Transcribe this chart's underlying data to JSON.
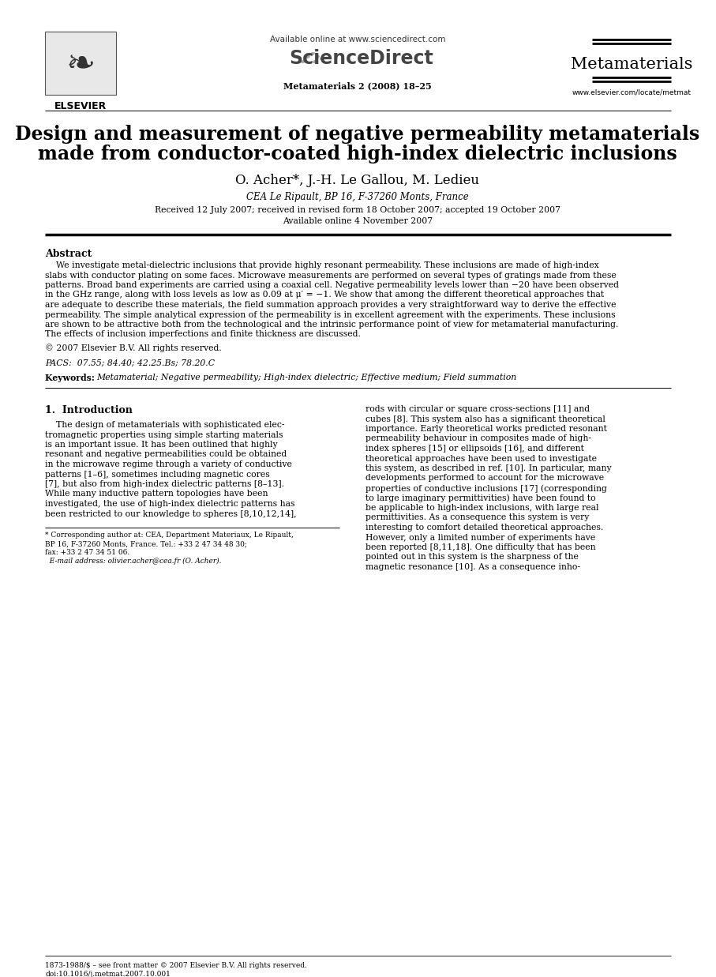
{
  "title_line1": "Design and measurement of negative permeability metamaterials",
  "title_line2": "made from conductor-coated high-index dielectric inclusions",
  "authors": "O. Acher*, J.-H. Le Gallou, M. Ledieu",
  "affiliation": "CEA Le Ripault, BP 16, F-37260 Monts, France",
  "received": "Received 12 July 2007; received in revised form 18 October 2007; accepted 19 October 2007",
  "available": "Available online 4 November 2007",
  "journal_info": "Metamaterials 2 (2008) 18–25",
  "journal_name": "Metamaterials",
  "url_top": "Available online at www.sciencedirect.com",
  "url_bottom": "www.elsevier.com/locate/metmat",
  "abstract_title": "Abstract",
  "pacs": "PACS:  07.55; 84.40; 42.25.Bs; 78.20.C",
  "keywords_label": "Keywords:  ",
  "keywords_body": "Metamaterial; Negative permeability; High-index dielectric; Effective medium; Field summation",
  "section1_title": "1.  Introduction",
  "footer_issn": "1873-1988/$ – see front matter © 2007 Elsevier B.V. All rights reserved.",
  "footer_doi": "doi:10.1016/j.metmat.2007.10.001",
  "bg_color": "#ffffff",
  "text_color": "#000000",
  "abstract_lines": [
    "    We investigate metal-dielectric inclusions that provide highly resonant permeability. These inclusions are made of high-index",
    "slabs with conductor plating on some faces. Microwave measurements are performed on several types of gratings made from these",
    "patterns. Broad band experiments are carried using a coaxial cell. Negative permeability levels lower than −20 have been observed",
    "in the GHz range, along with loss levels as low as 0.09 at μ′ = −1. We show that among the different theoretical approaches that",
    "are adequate to describe these materials, the field summation approach provides a very straightforward way to derive the effective",
    "permeability. The simple analytical expression of the permeability is in excellent agreement with the experiments. These inclusions",
    "are shown to be attractive both from the technological and the intrinsic performance point of view for metamaterial manufacturing.",
    "The effects of inclusion imperfections and finite thickness are discussed."
  ],
  "copyright": "© 2007 Elsevier B.V. All rights reserved.",
  "intro_col1_lines": [
    "    The design of metamaterials with sophisticated elec-",
    "tromagnetic properties using simple starting materials",
    "is an important issue. It has been outlined that highly",
    "resonant and negative permeabilities could be obtained",
    "in the microwave regime through a variety of conductive",
    "patterns [1–6], sometimes including magnetic cores",
    "[7], but also from high-index dielectric patterns [8–13].",
    "While many inductive pattern topologies have been",
    "investigated, the use of high-index dielectric patterns has",
    "been restricted to our knowledge to spheres [8,10,12,14],"
  ],
  "intro_col2_lines": [
    "rods with circular or square cross-sections [11] and",
    "cubes [8]. This system also has a significant theoretical",
    "importance. Early theoretical works predicted resonant",
    "permeability behaviour in composites made of high-",
    "index spheres [15] or ellipsoids [16], and different",
    "theoretical approaches have been used to investigate",
    "this system, as described in ref. [10]. In particular, many",
    "developments performed to account for the microwave",
    "properties of conductive inclusions [17] (corresponding",
    "to large imaginary permittivities) have been found to",
    "be applicable to high-index inclusions, with large real",
    "permittivities. As a consequence this system is very",
    "interesting to comfort detailed theoretical approaches.",
    "However, only a limited number of experiments have",
    "been reported [8,11,18]. One difficulty that has been",
    "pointed out in this system is the sharpness of the",
    "magnetic resonance [10]. As a consequence inho-"
  ],
  "footnote_lines": [
    "* Corresponding author at: CEA, Department Materiaux, Le Ripault,",
    "BP 16, F-37260 Monts, France. Tel.: +33 2 47 34 48 30;",
    "fax: +33 2 47 34 51 06."
  ],
  "footnote_email": "  E-mail address: olivier.acher@cea.fr (O. Acher)."
}
